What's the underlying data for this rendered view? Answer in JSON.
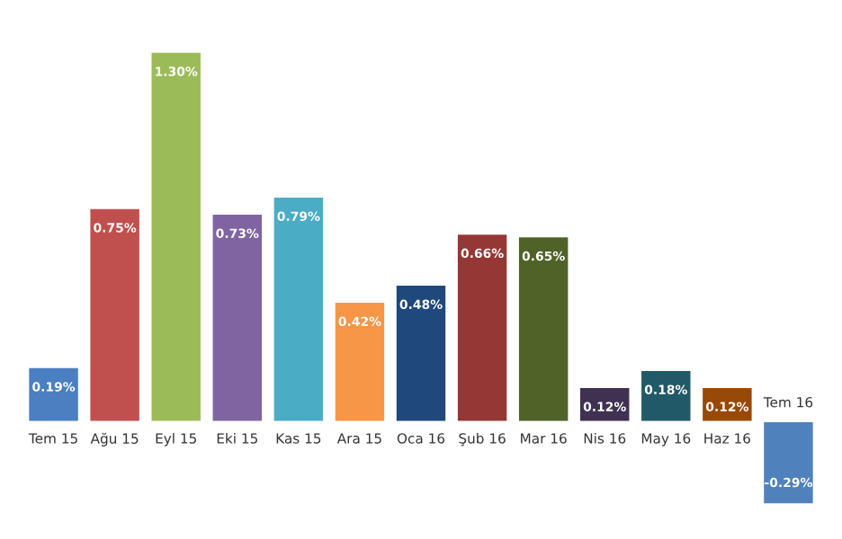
{
  "chart_data": {
    "type": "bar",
    "categories": [
      "Tem 15",
      "Ağu 15",
      "Eyl 15",
      "Eki 15",
      "Kas 15",
      "Ara 15",
      "Oca 16",
      "Şub 16",
      "Mar 16",
      "Nis 16",
      "May 16",
      "Haz 16",
      "Tem 16"
    ],
    "values": [
      0.19,
      0.75,
      1.3,
      0.73,
      0.79,
      0.42,
      0.48,
      0.66,
      0.65,
      0.12,
      0.18,
      0.12,
      -0.29
    ],
    "value_labels": [
      "0.19%",
      "0.75%",
      "1.30%",
      "0.73%",
      "0.79%",
      "0.42%",
      "0.48%",
      "0.66%",
      "0.65%",
      "0.12%",
      "0.18%",
      "0.12%",
      "-0.29%"
    ],
    "colors": [
      "#4a7fc1",
      "#c0504d",
      "#9bbb59",
      "#8064a2",
      "#4bacc6",
      "#f79646",
      "#1f497d",
      "#953735",
      "#4f6228",
      "#3f3151",
      "#215968",
      "#984807",
      "#4f81bd"
    ]
  }
}
